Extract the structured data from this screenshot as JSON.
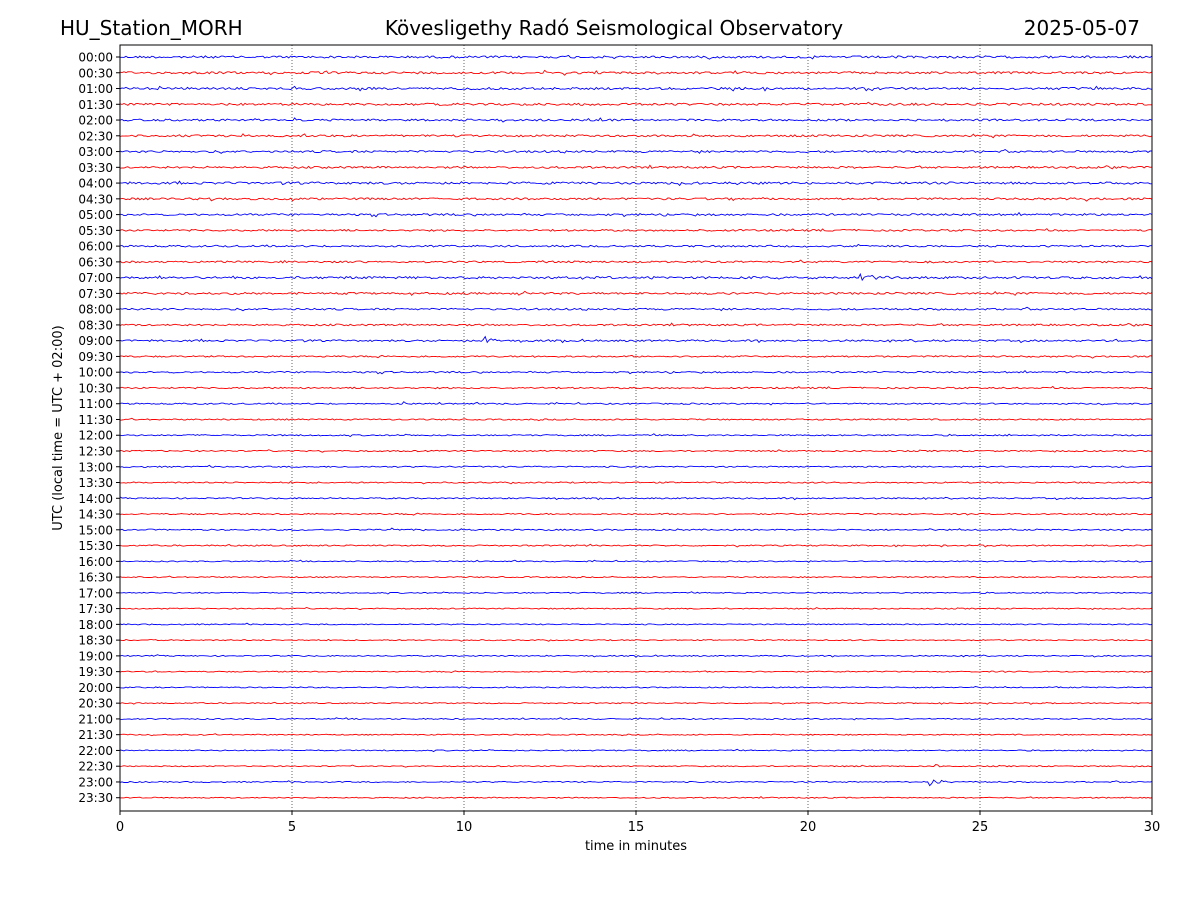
{
  "header": {
    "station": "HU_Station_MORH",
    "title": "Kövesligethy Radó Seismological Observatory",
    "date": "2025-05-07"
  },
  "colors": {
    "odd_trace": "#0000ff",
    "even_trace": "#ff0000",
    "grid": "#000000",
    "axes": "#000000"
  },
  "chart_data": {
    "type": "line",
    "title": "Kövesligethy Radó Seismological Observatory",
    "xlabel": "time in minutes",
    "ylabel": "UTC (local time = UTC + 02:00)",
    "xlim": [
      0,
      30
    ],
    "xticks": [
      0,
      5,
      10,
      15,
      20,
      25,
      30
    ],
    "grid": "vertical dotted lines at x ticks",
    "legend": "none",
    "row_labels": [
      "00:00",
      "00:30",
      "01:00",
      "01:30",
      "02:00",
      "02:30",
      "03:00",
      "03:30",
      "04:00",
      "04:30",
      "05:00",
      "05:30",
      "06:00",
      "06:30",
      "07:00",
      "07:30",
      "08:00",
      "08:30",
      "09:00",
      "09:30",
      "10:00",
      "10:30",
      "11:00",
      "11:30",
      "12:00",
      "12:30",
      "13:00",
      "13:30",
      "14:00",
      "14:30",
      "15:00",
      "15:30",
      "16:00",
      "16:30",
      "17:00",
      "17:30",
      "18:00",
      "18:30",
      "19:00",
      "19:30",
      "20:00",
      "20:30",
      "21:00",
      "21:30",
      "22:00",
      "22:30",
      "23:00",
      "23:30"
    ],
    "row_colors": "alternating blue (on the hour) and red (half hour)",
    "noise_levels": [
      1.0,
      1.0,
      1.0,
      1.0,
      0.9,
      0.9,
      0.9,
      0.9,
      1.0,
      0.9,
      0.9,
      0.8,
      0.8,
      0.8,
      1.0,
      0.9,
      0.8,
      0.8,
      0.8,
      0.7,
      0.7,
      0.7,
      0.6,
      0.6,
      0.6,
      0.6,
      0.6,
      0.6,
      0.6,
      0.6,
      0.6,
      0.6,
      0.5,
      0.5,
      0.5,
      0.5,
      0.5,
      0.5,
      0.5,
      0.5,
      0.5,
      0.5,
      0.5,
      0.5,
      0.5,
      0.5,
      0.5,
      0.5
    ],
    "events": [
      {
        "row": "07:00",
        "start_min": 21.5,
        "duration_min": 1.4,
        "amplitude": 6
      },
      {
        "row": "09:00",
        "start_min": 10.6,
        "duration_min": 0.6,
        "amplitude": 6
      },
      {
        "row": "09:30",
        "start_min": 19.0,
        "duration_min": 0.3,
        "amplitude": 3
      },
      {
        "row": "11:00",
        "start_min": 8.2,
        "duration_min": 0.3,
        "amplitude": 3
      },
      {
        "row": "15:00",
        "start_min": 7.8,
        "duration_min": 0.5,
        "amplitude": 3
      },
      {
        "row": "22:30",
        "start_min": 23.7,
        "duration_min": 0.2,
        "amplitude": 3
      },
      {
        "row": "23:00",
        "start_min": 23.5,
        "duration_min": 0.9,
        "amplitude": 5
      }
    ]
  }
}
